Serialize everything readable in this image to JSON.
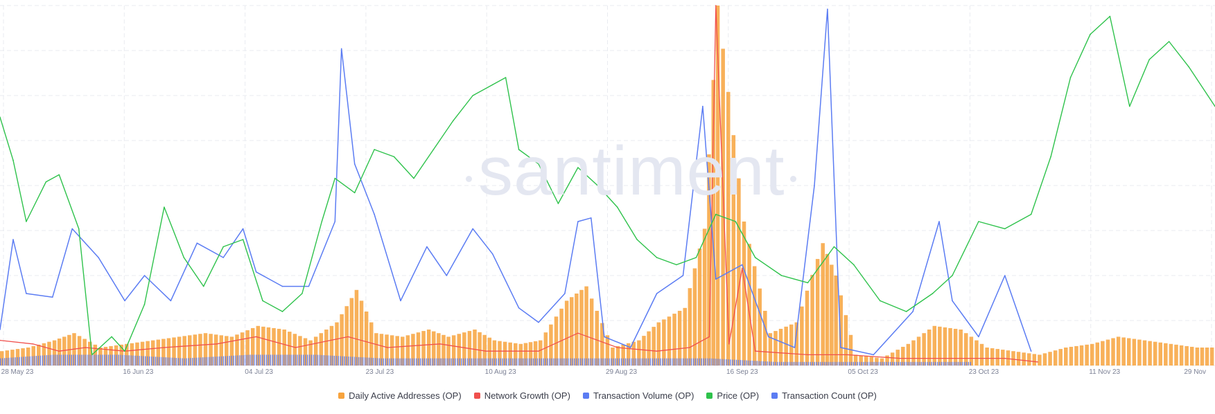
{
  "chart_data": {
    "type": "line",
    "title": "",
    "watermark": "santiment",
    "grid": true,
    "legend_position": "bottom",
    "x_ticks": [
      "28 May 23",
      "16 Jun 23",
      "04 Jul 23",
      "23 Jul 23",
      "10 Aug 23",
      "29 Aug 23",
      "16 Sep 23",
      "05 Oct 23",
      "23 Oct 23",
      "11 Nov 23",
      "29 Nov"
    ],
    "x_range": [
      "2023-05-28",
      "2023-11-29"
    ],
    "series": [
      {
        "name": "Daily Active Addresses (OP)",
        "kind": "bar",
        "color": "#f7a33d",
        "note_scale": "relative 0-1 of panel height",
        "points": [
          [
            "2023-05-28",
            0.04
          ],
          [
            "2023-06-01",
            0.05
          ],
          [
            "2023-06-05",
            0.07
          ],
          [
            "2023-06-08",
            0.09
          ],
          [
            "2023-06-12",
            0.05
          ],
          [
            "2023-06-16",
            0.06
          ],
          [
            "2023-06-20",
            0.07
          ],
          [
            "2023-06-24",
            0.08
          ],
          [
            "2023-06-28",
            0.09
          ],
          [
            "2023-07-02",
            0.08
          ],
          [
            "2023-07-06",
            0.11
          ],
          [
            "2023-07-10",
            0.1
          ],
          [
            "2023-07-14",
            0.07
          ],
          [
            "2023-07-18",
            0.12
          ],
          [
            "2023-07-21",
            0.21
          ],
          [
            "2023-07-24",
            0.09
          ],
          [
            "2023-07-28",
            0.08
          ],
          [
            "2023-08-01",
            0.1
          ],
          [
            "2023-08-04",
            0.08
          ],
          [
            "2023-08-08",
            0.1
          ],
          [
            "2023-08-11",
            0.07
          ],
          [
            "2023-08-15",
            0.06
          ],
          [
            "2023-08-18",
            0.07
          ],
          [
            "2023-08-22",
            0.18
          ],
          [
            "2023-08-25",
            0.22
          ],
          [
            "2023-08-29",
            0.05
          ],
          [
            "2023-09-02",
            0.07
          ],
          [
            "2023-09-05",
            0.12
          ],
          [
            "2023-09-09",
            0.16
          ],
          [
            "2023-09-12",
            0.38
          ],
          [
            "2023-09-14",
            1.0
          ],
          [
            "2023-09-18",
            0.4
          ],
          [
            "2023-09-22",
            0.09
          ],
          [
            "2023-09-26",
            0.12
          ],
          [
            "2023-09-30",
            0.34
          ],
          [
            "2023-10-02",
            0.25
          ],
          [
            "2023-10-05",
            0.03
          ],
          [
            "2023-10-09",
            0.02
          ],
          [
            "2023-10-13",
            0.06
          ],
          [
            "2023-10-17",
            0.11
          ],
          [
            "2023-10-21",
            0.1
          ],
          [
            "2023-10-25",
            0.05
          ],
          [
            "2023-10-29",
            0.04
          ],
          [
            "2023-11-02",
            0.03
          ],
          [
            "2023-11-06",
            0.05
          ],
          [
            "2023-11-10",
            0.06
          ],
          [
            "2023-11-14",
            0.08
          ],
          [
            "2023-11-18",
            0.07
          ],
          [
            "2023-11-22",
            0.06
          ],
          [
            "2023-11-26",
            0.05
          ],
          [
            "2023-11-29",
            0.05
          ]
        ]
      },
      {
        "name": "Network Growth (OP)",
        "kind": "line",
        "color": "#f0504d",
        "points": [
          [
            "2023-05-28",
            0.07
          ],
          [
            "2023-06-02",
            0.06
          ],
          [
            "2023-06-06",
            0.04
          ],
          [
            "2023-06-10",
            0.05
          ],
          [
            "2023-06-16",
            0.04
          ],
          [
            "2023-06-22",
            0.05
          ],
          [
            "2023-06-30",
            0.06
          ],
          [
            "2023-07-06",
            0.08
          ],
          [
            "2023-07-12",
            0.05
          ],
          [
            "2023-07-20",
            0.08
          ],
          [
            "2023-07-26",
            0.05
          ],
          [
            "2023-08-03",
            0.06
          ],
          [
            "2023-08-10",
            0.04
          ],
          [
            "2023-08-18",
            0.04
          ],
          [
            "2023-08-24",
            0.09
          ],
          [
            "2023-08-30",
            0.05
          ],
          [
            "2023-09-05",
            0.04
          ],
          [
            "2023-09-10",
            0.05
          ],
          [
            "2023-09-13",
            0.08
          ],
          [
            "2023-09-14",
            1.0
          ],
          [
            "2023-09-16",
            0.06
          ],
          [
            "2023-09-18",
            0.27
          ],
          [
            "2023-09-20",
            0.04
          ],
          [
            "2023-09-28",
            0.03
          ],
          [
            "2023-10-04",
            0.03
          ],
          [
            "2023-10-12",
            0.02
          ],
          [
            "2023-10-20",
            0.02
          ],
          [
            "2023-10-28",
            0.02
          ],
          [
            "2023-11-02",
            0.01
          ]
        ]
      },
      {
        "name": "Transaction Volume (OP)",
        "kind": "line",
        "color": "#5b7cf3",
        "points": [
          [
            "2023-05-28",
            0.1
          ],
          [
            "2023-05-30",
            0.35
          ],
          [
            "2023-06-01",
            0.2
          ],
          [
            "2023-06-05",
            0.19
          ],
          [
            "2023-06-08",
            0.38
          ],
          [
            "2023-06-12",
            0.3
          ],
          [
            "2023-06-16",
            0.18
          ],
          [
            "2023-06-19",
            0.25
          ],
          [
            "2023-06-23",
            0.18
          ],
          [
            "2023-06-27",
            0.34
          ],
          [
            "2023-07-01",
            0.3
          ],
          [
            "2023-07-04",
            0.38
          ],
          [
            "2023-07-06",
            0.26
          ],
          [
            "2023-07-10",
            0.22
          ],
          [
            "2023-07-14",
            0.22
          ],
          [
            "2023-07-18",
            0.4
          ],
          [
            "2023-07-19",
            0.88
          ],
          [
            "2023-07-21",
            0.56
          ],
          [
            "2023-07-24",
            0.42
          ],
          [
            "2023-07-28",
            0.18
          ],
          [
            "2023-08-01",
            0.33
          ],
          [
            "2023-08-04",
            0.25
          ],
          [
            "2023-08-08",
            0.38
          ],
          [
            "2023-08-11",
            0.31
          ],
          [
            "2023-08-15",
            0.16
          ],
          [
            "2023-08-18",
            0.12
          ],
          [
            "2023-08-22",
            0.2
          ],
          [
            "2023-08-24",
            0.4
          ],
          [
            "2023-08-26",
            0.41
          ],
          [
            "2023-08-28",
            0.08
          ],
          [
            "2023-09-01",
            0.05
          ],
          [
            "2023-09-05",
            0.2
          ],
          [
            "2023-09-09",
            0.25
          ],
          [
            "2023-09-12",
            0.72
          ],
          [
            "2023-09-14",
            0.24
          ],
          [
            "2023-09-18",
            0.28
          ],
          [
            "2023-09-22",
            0.08
          ],
          [
            "2023-09-26",
            0.05
          ],
          [
            "2023-09-29",
            0.5
          ],
          [
            "2023-10-01",
            0.99
          ],
          [
            "2023-10-03",
            0.05
          ],
          [
            "2023-10-08",
            0.03
          ],
          [
            "2023-10-14",
            0.15
          ],
          [
            "2023-10-18",
            0.4
          ],
          [
            "2023-10-20",
            0.18
          ],
          [
            "2023-10-24",
            0.08
          ],
          [
            "2023-10-28",
            0.25
          ],
          [
            "2023-11-01",
            0.04
          ]
        ]
      },
      {
        "name": "Price (OP)",
        "kind": "line",
        "color": "#2ec24b",
        "points": [
          [
            "2023-05-28",
            0.69
          ],
          [
            "2023-05-30",
            0.57
          ],
          [
            "2023-06-01",
            0.4
          ],
          [
            "2023-06-04",
            0.51
          ],
          [
            "2023-06-06",
            0.53
          ],
          [
            "2023-06-09",
            0.38
          ],
          [
            "2023-06-11",
            0.03
          ],
          [
            "2023-06-14",
            0.08
          ],
          [
            "2023-06-16",
            0.04
          ],
          [
            "2023-06-19",
            0.17
          ],
          [
            "2023-06-22",
            0.44
          ],
          [
            "2023-06-25",
            0.3
          ],
          [
            "2023-06-28",
            0.22
          ],
          [
            "2023-07-01",
            0.33
          ],
          [
            "2023-07-04",
            0.35
          ],
          [
            "2023-07-07",
            0.18
          ],
          [
            "2023-07-10",
            0.15
          ],
          [
            "2023-07-13",
            0.2
          ],
          [
            "2023-07-16",
            0.4
          ],
          [
            "2023-07-18",
            0.52
          ],
          [
            "2023-07-21",
            0.48
          ],
          [
            "2023-07-24",
            0.6
          ],
          [
            "2023-07-27",
            0.58
          ],
          [
            "2023-07-30",
            0.52
          ],
          [
            "2023-08-02",
            0.6
          ],
          [
            "2023-08-05",
            0.68
          ],
          [
            "2023-08-08",
            0.75
          ],
          [
            "2023-08-11",
            0.78
          ],
          [
            "2023-08-13",
            0.8
          ],
          [
            "2023-08-15",
            0.6
          ],
          [
            "2023-08-18",
            0.56
          ],
          [
            "2023-08-21",
            0.45
          ],
          [
            "2023-08-24",
            0.55
          ],
          [
            "2023-08-27",
            0.5
          ],
          [
            "2023-08-30",
            0.44
          ],
          [
            "2023-09-02",
            0.35
          ],
          [
            "2023-09-05",
            0.3
          ],
          [
            "2023-09-08",
            0.28
          ],
          [
            "2023-09-11",
            0.3
          ],
          [
            "2023-09-14",
            0.42
          ],
          [
            "2023-09-17",
            0.4
          ],
          [
            "2023-09-20",
            0.3
          ],
          [
            "2023-09-24",
            0.25
          ],
          [
            "2023-09-28",
            0.23
          ],
          [
            "2023-10-02",
            0.33
          ],
          [
            "2023-10-05",
            0.28
          ],
          [
            "2023-10-09",
            0.18
          ],
          [
            "2023-10-13",
            0.15
          ],
          [
            "2023-10-17",
            0.2
          ],
          [
            "2023-10-20",
            0.25
          ],
          [
            "2023-10-24",
            0.4
          ],
          [
            "2023-10-28",
            0.38
          ],
          [
            "2023-11-01",
            0.42
          ],
          [
            "2023-11-04",
            0.58
          ],
          [
            "2023-11-07",
            0.8
          ],
          [
            "2023-11-10",
            0.92
          ],
          [
            "2023-11-13",
            0.97
          ],
          [
            "2023-11-16",
            0.72
          ],
          [
            "2023-11-19",
            0.85
          ],
          [
            "2023-11-22",
            0.9
          ],
          [
            "2023-11-25",
            0.83
          ],
          [
            "2023-11-29",
            0.72
          ]
        ]
      },
      {
        "name": "Transaction Count (OP)",
        "kind": "bar",
        "color": "#5b7cf3",
        "points": [
          [
            "2023-05-28",
            0.02
          ],
          [
            "2023-06-05",
            0.03
          ],
          [
            "2023-06-15",
            0.03
          ],
          [
            "2023-06-25",
            0.02
          ],
          [
            "2023-07-05",
            0.03
          ],
          [
            "2023-07-15",
            0.03
          ],
          [
            "2023-07-25",
            0.02
          ],
          [
            "2023-08-04",
            0.02
          ],
          [
            "2023-08-14",
            0.02
          ],
          [
            "2023-08-24",
            0.02
          ],
          [
            "2023-09-03",
            0.02
          ],
          [
            "2023-09-13",
            0.02
          ],
          [
            "2023-09-23",
            0.01
          ],
          [
            "2023-10-03",
            0.01
          ],
          [
            "2023-10-13",
            0.01
          ],
          [
            "2023-10-23",
            0.01
          ]
        ]
      }
    ]
  },
  "legend": [
    {
      "label": "Daily Active Addresses (OP)",
      "color": "#f7a33d"
    },
    {
      "label": "Network Growth (OP)",
      "color": "#f0504d"
    },
    {
      "label": "Transaction Volume (OP)",
      "color": "#5b7cf3"
    },
    {
      "label": "Price (OP)",
      "color": "#2ec24b"
    },
    {
      "label": "Transaction Count (OP)",
      "color": "#5b7cf3"
    }
  ]
}
